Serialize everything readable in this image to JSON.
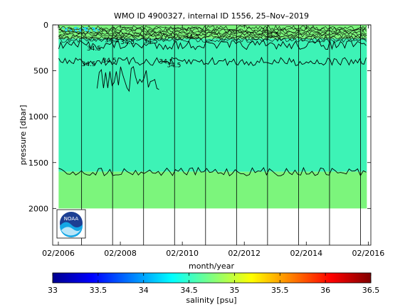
{
  "chart_data": {
    "type": "heatmap",
    "title": "WMO ID 4900327, internal ID 1556, 25–Nov–2019",
    "xlabel": "month/year",
    "ylabel": "pressure [dbar]",
    "colorbar_label": "salinity [psu]",
    "x_range": [
      "2006-01",
      "2016-02"
    ],
    "y_range": [
      0,
      2400
    ],
    "y_reversed": true,
    "x_ticks": [
      "02/2006",
      "02/2008",
      "02/2010",
      "02/2012",
      "02/2014",
      "02/2016"
    ],
    "y_ticks": [
      0,
      500,
      1000,
      1500,
      2000
    ],
    "colorbar_ticks": [
      33,
      33.5,
      34,
      34.5,
      35,
      35.5,
      36,
      36.5
    ],
    "colorbar_range": [
      33,
      36.5
    ],
    "profile_year_markers": [
      "2006-11",
      "2007-11",
      "2008-11",
      "2009-11",
      "2010-11",
      "2011-11",
      "2012-11",
      "2013-11",
      "2014-11",
      "2015-11"
    ],
    "layers": [
      {
        "salinity_class": "34.5-35.0",
        "pressure_from": 0,
        "pressure_to": 150,
        "color": "#7cf57c"
      },
      {
        "salinity_class": "34.5",
        "pressure_from": 150,
        "pressure_to": 1600,
        "color": "#3df3b6"
      },
      {
        "salinity_class": "34.5-35.0",
        "pressure_from": 1600,
        "pressure_to": 2000,
        "color": "#7cf57c"
      }
    ],
    "contour_labels": [
      "34.5",
      "34.5",
      "34.5",
      "34.5",
      "34.5",
      "34.5",
      "34.5",
      "34.5",
      "34.5",
      "34.5"
    ],
    "deep_isohaline_approx_dbar": 1600,
    "shallow_isohaline_approx_dbar": 400
  },
  "logo_text": "NOAA"
}
